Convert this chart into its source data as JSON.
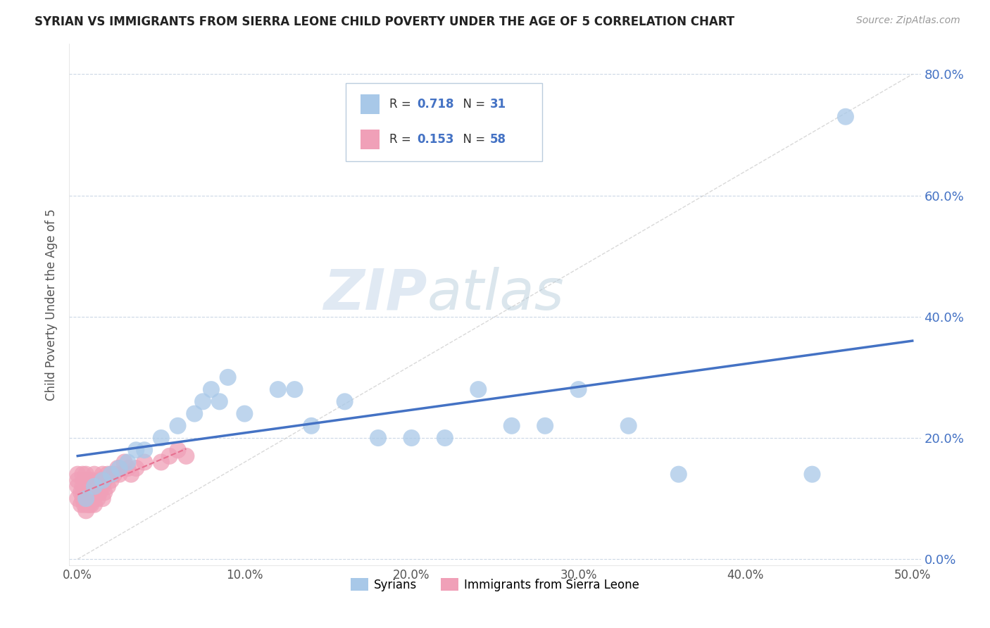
{
  "title": "SYRIAN VS IMMIGRANTS FROM SIERRA LEONE CHILD POVERTY UNDER THE AGE OF 5 CORRELATION CHART",
  "source": "Source: ZipAtlas.com",
  "ylabel": "Child Poverty Under the Age of 5",
  "syrians_R": 0.718,
  "syrians_N": 31,
  "sierra_leone_R": 0.153,
  "sierra_leone_N": 58,
  "syrian_color": "#a8c8e8",
  "sierra_leone_color": "#f0a0b8",
  "syrian_line_color": "#4472c4",
  "sierra_leone_line_color": "#e87090",
  "watermark_zip": "ZIP",
  "watermark_atlas": "atlas",
  "background_color": "#ffffff",
  "grid_color": "#c0cfe0",
  "xlim": [
    -0.005,
    0.505
  ],
  "ylim": [
    -0.01,
    0.85
  ],
  "x_tick_vals": [
    0.0,
    0.1,
    0.2,
    0.3,
    0.4,
    0.5
  ],
  "y_tick_vals": [
    0.0,
    0.2,
    0.4,
    0.6,
    0.8
  ],
  "syrians_x": [
    0.005,
    0.01,
    0.015,
    0.02,
    0.025,
    0.03,
    0.035,
    0.04,
    0.05,
    0.06,
    0.07,
    0.075,
    0.08,
    0.085,
    0.09,
    0.1,
    0.12,
    0.13,
    0.14,
    0.16,
    0.18,
    0.2,
    0.22,
    0.24,
    0.26,
    0.28,
    0.3,
    0.33,
    0.36,
    0.44,
    0.46
  ],
  "syrians_y": [
    0.1,
    0.12,
    0.13,
    0.14,
    0.15,
    0.16,
    0.18,
    0.18,
    0.2,
    0.22,
    0.24,
    0.26,
    0.28,
    0.26,
    0.3,
    0.24,
    0.28,
    0.28,
    0.22,
    0.26,
    0.2,
    0.2,
    0.2,
    0.28,
    0.22,
    0.22,
    0.28,
    0.22,
    0.14,
    0.14,
    0.73
  ],
  "sierra_leone_x": [
    0.0,
    0.0,
    0.0,
    0.0,
    0.002,
    0.002,
    0.003,
    0.003,
    0.003,
    0.004,
    0.004,
    0.004,
    0.005,
    0.005,
    0.005,
    0.005,
    0.005,
    0.006,
    0.006,
    0.006,
    0.007,
    0.007,
    0.007,
    0.008,
    0.008,
    0.008,
    0.009,
    0.009,
    0.01,
    0.01,
    0.01,
    0.01,
    0.012,
    0.012,
    0.013,
    0.013,
    0.014,
    0.015,
    0.015,
    0.015,
    0.016,
    0.016,
    0.018,
    0.018,
    0.02,
    0.02,
    0.022,
    0.024,
    0.025,
    0.028,
    0.03,
    0.032,
    0.035,
    0.04,
    0.05,
    0.055,
    0.06,
    0.065
  ],
  "sierra_leone_y": [
    0.1,
    0.12,
    0.13,
    0.14,
    0.09,
    0.11,
    0.1,
    0.12,
    0.14,
    0.09,
    0.11,
    0.13,
    0.08,
    0.1,
    0.11,
    0.12,
    0.14,
    0.09,
    0.11,
    0.13,
    0.09,
    0.1,
    0.12,
    0.09,
    0.11,
    0.13,
    0.1,
    0.12,
    0.09,
    0.11,
    0.12,
    0.14,
    0.1,
    0.12,
    0.11,
    0.13,
    0.12,
    0.1,
    0.12,
    0.14,
    0.11,
    0.13,
    0.12,
    0.14,
    0.13,
    0.14,
    0.14,
    0.15,
    0.14,
    0.16,
    0.15,
    0.14,
    0.15,
    0.16,
    0.16,
    0.17,
    0.18,
    0.17
  ]
}
